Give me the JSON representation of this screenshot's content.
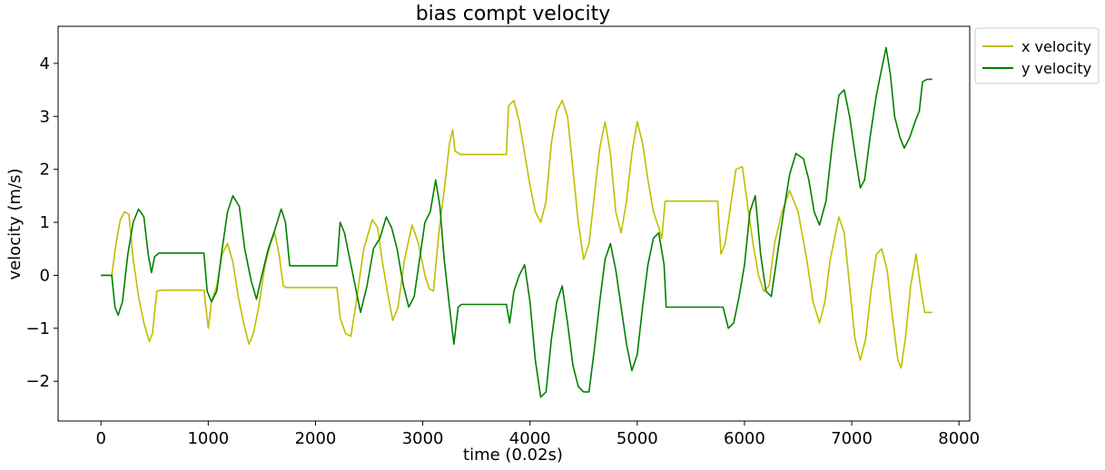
{
  "chart_data": {
    "type": "line",
    "title": "bias compt velocity",
    "xlabel": "time (0.02s)",
    "ylabel": "velocity (m/s)",
    "xlim": [
      -400,
      8100
    ],
    "ylim": [
      -2.75,
      4.7
    ],
    "xticks": [
      0,
      1000,
      2000,
      3000,
      4000,
      5000,
      6000,
      7000,
      8000
    ],
    "xtick_labels": [
      "0",
      "1000",
      "2000",
      "3000",
      "4000",
      "5000",
      "6000",
      "7000",
      "8000"
    ],
    "yticks": [
      -2,
      -1,
      0,
      1,
      2,
      3,
      4
    ],
    "ytick_labels": [
      "−2",
      "−1",
      "0",
      "1",
      "2",
      "3",
      "4"
    ],
    "grid": false,
    "legend_position": "outside-top-right",
    "series": [
      {
        "name": "x velocity",
        "color": "#bfbf00",
        "points": [
          [
            0,
            0
          ],
          [
            100,
            0
          ],
          [
            140,
            0.6
          ],
          [
            180,
            1.05
          ],
          [
            220,
            1.2
          ],
          [
            260,
            1.15
          ],
          [
            300,
            0.3
          ],
          [
            350,
            -0.4
          ],
          [
            400,
            -0.9
          ],
          [
            450,
            -1.25
          ],
          [
            480,
            -1.1
          ],
          [
            520,
            -0.3
          ],
          [
            560,
            -0.28
          ],
          [
            700,
            -0.28
          ],
          [
            960,
            -0.28
          ],
          [
            1000,
            -1.0
          ],
          [
            1030,
            -0.5
          ],
          [
            1080,
            -0.2
          ],
          [
            1130,
            0.4
          ],
          [
            1180,
            0.6
          ],
          [
            1230,
            0.25
          ],
          [
            1280,
            -0.4
          ],
          [
            1330,
            -0.9
          ],
          [
            1380,
            -1.3
          ],
          [
            1420,
            -1.1
          ],
          [
            1470,
            -0.6
          ],
          [
            1530,
            0.2
          ],
          [
            1580,
            0.6
          ],
          [
            1620,
            0.8
          ],
          [
            1660,
            0.4
          ],
          [
            1700,
            -0.2
          ],
          [
            1730,
            -0.23
          ],
          [
            1800,
            -0.23
          ],
          [
            2000,
            -0.23
          ],
          [
            2200,
            -0.23
          ],
          [
            2230,
            -0.8
          ],
          [
            2280,
            -1.1
          ],
          [
            2330,
            -1.15
          ],
          [
            2380,
            -0.5
          ],
          [
            2450,
            0.5
          ],
          [
            2530,
            1.05
          ],
          [
            2580,
            0.9
          ],
          [
            2620,
            0.3
          ],
          [
            2670,
            -0.3
          ],
          [
            2720,
            -0.85
          ],
          [
            2770,
            -0.6
          ],
          [
            2830,
            0.3
          ],
          [
            2900,
            0.95
          ],
          [
            2960,
            0.6
          ],
          [
            3020,
            0.0
          ],
          [
            3060,
            -0.25
          ],
          [
            3100,
            -0.3
          ],
          [
            3150,
            0.8
          ],
          [
            3200,
            1.6
          ],
          [
            3250,
            2.5
          ],
          [
            3280,
            2.75
          ],
          [
            3300,
            2.35
          ],
          [
            3350,
            2.28
          ],
          [
            3500,
            2.28
          ],
          [
            3780,
            2.28
          ],
          [
            3800,
            3.2
          ],
          [
            3850,
            3.3
          ],
          [
            3900,
            2.9
          ],
          [
            3950,
            2.3
          ],
          [
            4000,
            1.7
          ],
          [
            4050,
            1.2
          ],
          [
            4100,
            1.0
          ],
          [
            4150,
            1.4
          ],
          [
            4200,
            2.5
          ],
          [
            4250,
            3.1
          ],
          [
            4300,
            3.3
          ],
          [
            4350,
            3.0
          ],
          [
            4400,
            2.0
          ],
          [
            4450,
            1.0
          ],
          [
            4500,
            0.3
          ],
          [
            4550,
            0.6
          ],
          [
            4600,
            1.5
          ],
          [
            4650,
            2.4
          ],
          [
            4700,
            2.9
          ],
          [
            4750,
            2.3
          ],
          [
            4800,
            1.2
          ],
          [
            4850,
            0.8
          ],
          [
            4900,
            1.4
          ],
          [
            4950,
            2.3
          ],
          [
            5000,
            2.9
          ],
          [
            5050,
            2.5
          ],
          [
            5100,
            1.8
          ],
          [
            5150,
            1.2
          ],
          [
            5200,
            0.9
          ],
          [
            5230,
            0.7
          ],
          [
            5260,
            1.4
          ],
          [
            5400,
            1.4
          ],
          [
            5700,
            1.4
          ],
          [
            5750,
            1.4
          ],
          [
            5780,
            0.4
          ],
          [
            5820,
            0.6
          ],
          [
            5870,
            1.3
          ],
          [
            5920,
            2.0
          ],
          [
            5980,
            2.05
          ],
          [
            6030,
            1.3
          ],
          [
            6080,
            0.6
          ],
          [
            6130,
            0.0
          ],
          [
            6180,
            -0.3
          ],
          [
            6230,
            -0.2
          ],
          [
            6280,
            0.6
          ],
          [
            6350,
            1.2
          ],
          [
            6420,
            1.6
          ],
          [
            6500,
            1.2
          ],
          [
            6580,
            0.3
          ],
          [
            6640,
            -0.5
          ],
          [
            6700,
            -0.9
          ],
          [
            6750,
            -0.5
          ],
          [
            6800,
            0.3
          ],
          [
            6880,
            1.1
          ],
          [
            6930,
            0.8
          ],
          [
            6980,
            -0.2
          ],
          [
            7030,
            -1.2
          ],
          [
            7080,
            -1.6
          ],
          [
            7130,
            -1.2
          ],
          [
            7180,
            -0.3
          ],
          [
            7230,
            0.4
          ],
          [
            7280,
            0.5
          ],
          [
            7330,
            0.1
          ],
          [
            7380,
            -0.8
          ],
          [
            7430,
            -1.6
          ],
          [
            7460,
            -1.75
          ],
          [
            7500,
            -1.2
          ],
          [
            7550,
            -0.2
          ],
          [
            7600,
            0.4
          ],
          [
            7640,
            -0.2
          ],
          [
            7680,
            -0.7
          ],
          [
            7750,
            -0.7
          ]
        ]
      },
      {
        "name": "y velocity",
        "color": "#008000",
        "points": [
          [
            0,
            0
          ],
          [
            100,
            0
          ],
          [
            130,
            -0.6
          ],
          [
            160,
            -0.75
          ],
          [
            200,
            -0.5
          ],
          [
            250,
            0.4
          ],
          [
            300,
            1.0
          ],
          [
            350,
            1.25
          ],
          [
            400,
            1.1
          ],
          [
            440,
            0.4
          ],
          [
            470,
            0.05
          ],
          [
            500,
            0.35
          ],
          [
            540,
            0.42
          ],
          [
            700,
            0.42
          ],
          [
            960,
            0.42
          ],
          [
            990,
            -0.3
          ],
          [
            1030,
            -0.5
          ],
          [
            1080,
            -0.3
          ],
          [
            1130,
            0.5
          ],
          [
            1180,
            1.2
          ],
          [
            1230,
            1.5
          ],
          [
            1290,
            1.3
          ],
          [
            1340,
            0.5
          ],
          [
            1400,
            -0.1
          ],
          [
            1450,
            -0.45
          ],
          [
            1500,
            0.0
          ],
          [
            1560,
            0.5
          ],
          [
            1620,
            0.85
          ],
          [
            1680,
            1.25
          ],
          [
            1720,
            1.0
          ],
          [
            1760,
            0.18
          ],
          [
            1900,
            0.18
          ],
          [
            2200,
            0.18
          ],
          [
            2230,
            1.0
          ],
          [
            2270,
            0.8
          ],
          [
            2320,
            0.3
          ],
          [
            2370,
            -0.2
          ],
          [
            2420,
            -0.7
          ],
          [
            2480,
            -0.2
          ],
          [
            2540,
            0.5
          ],
          [
            2600,
            0.7
          ],
          [
            2660,
            1.1
          ],
          [
            2710,
            0.9
          ],
          [
            2760,
            0.5
          ],
          [
            2820,
            -0.2
          ],
          [
            2870,
            -0.6
          ],
          [
            2920,
            -0.4
          ],
          [
            2970,
            0.3
          ],
          [
            3020,
            1.0
          ],
          [
            3070,
            1.2
          ],
          [
            3120,
            1.8
          ],
          [
            3160,
            1.3
          ],
          [
            3200,
            0.3
          ],
          [
            3250,
            -0.6
          ],
          [
            3290,
            -1.3
          ],
          [
            3330,
            -0.6
          ],
          [
            3360,
            -0.55
          ],
          [
            3500,
            -0.55
          ],
          [
            3780,
            -0.55
          ],
          [
            3810,
            -0.9
          ],
          [
            3850,
            -0.3
          ],
          [
            3900,
            0.0
          ],
          [
            3950,
            0.2
          ],
          [
            4000,
            -0.5
          ],
          [
            4050,
            -1.6
          ],
          [
            4100,
            -2.3
          ],
          [
            4150,
            -2.2
          ],
          [
            4200,
            -1.2
          ],
          [
            4250,
            -0.5
          ],
          [
            4300,
            -0.2
          ],
          [
            4350,
            -0.9
          ],
          [
            4400,
            -1.7
          ],
          [
            4450,
            -2.1
          ],
          [
            4500,
            -2.2
          ],
          [
            4550,
            -2.2
          ],
          [
            4600,
            -1.4
          ],
          [
            4650,
            -0.5
          ],
          [
            4700,
            0.3
          ],
          [
            4750,
            0.6
          ],
          [
            4800,
            0.1
          ],
          [
            4850,
            -0.6
          ],
          [
            4900,
            -1.3
          ],
          [
            4950,
            -1.8
          ],
          [
            5000,
            -1.5
          ],
          [
            5050,
            -0.6
          ],
          [
            5100,
            0.2
          ],
          [
            5150,
            0.7
          ],
          [
            5200,
            0.8
          ],
          [
            5250,
            0.2
          ],
          [
            5270,
            -0.6
          ],
          [
            5500,
            -0.6
          ],
          [
            5750,
            -0.6
          ],
          [
            5800,
            -0.6
          ],
          [
            5850,
            -1.0
          ],
          [
            5900,
            -0.9
          ],
          [
            5950,
            -0.4
          ],
          [
            6000,
            0.2
          ],
          [
            6050,
            1.2
          ],
          [
            6100,
            1.5
          ],
          [
            6150,
            0.4
          ],
          [
            6200,
            -0.3
          ],
          [
            6250,
            -0.4
          ],
          [
            6300,
            0.3
          ],
          [
            6350,
            1.0
          ],
          [
            6420,
            1.9
          ],
          [
            6480,
            2.3
          ],
          [
            6550,
            2.2
          ],
          [
            6600,
            1.8
          ],
          [
            6650,
            1.2
          ],
          [
            6700,
            0.95
          ],
          [
            6760,
            1.4
          ],
          [
            6820,
            2.5
          ],
          [
            6880,
            3.4
          ],
          [
            6930,
            3.5
          ],
          [
            6980,
            3.0
          ],
          [
            7030,
            2.3
          ],
          [
            7080,
            1.65
          ],
          [
            7120,
            1.8
          ],
          [
            7170,
            2.6
          ],
          [
            7230,
            3.4
          ],
          [
            7280,
            3.9
          ],
          [
            7320,
            4.3
          ],
          [
            7360,
            3.8
          ],
          [
            7400,
            3.0
          ],
          [
            7450,
            2.6
          ],
          [
            7490,
            2.4
          ],
          [
            7540,
            2.6
          ],
          [
            7590,
            2.9
          ],
          [
            7630,
            3.1
          ],
          [
            7660,
            3.65
          ],
          [
            7700,
            3.7
          ],
          [
            7750,
            3.7
          ]
        ]
      }
    ]
  }
}
